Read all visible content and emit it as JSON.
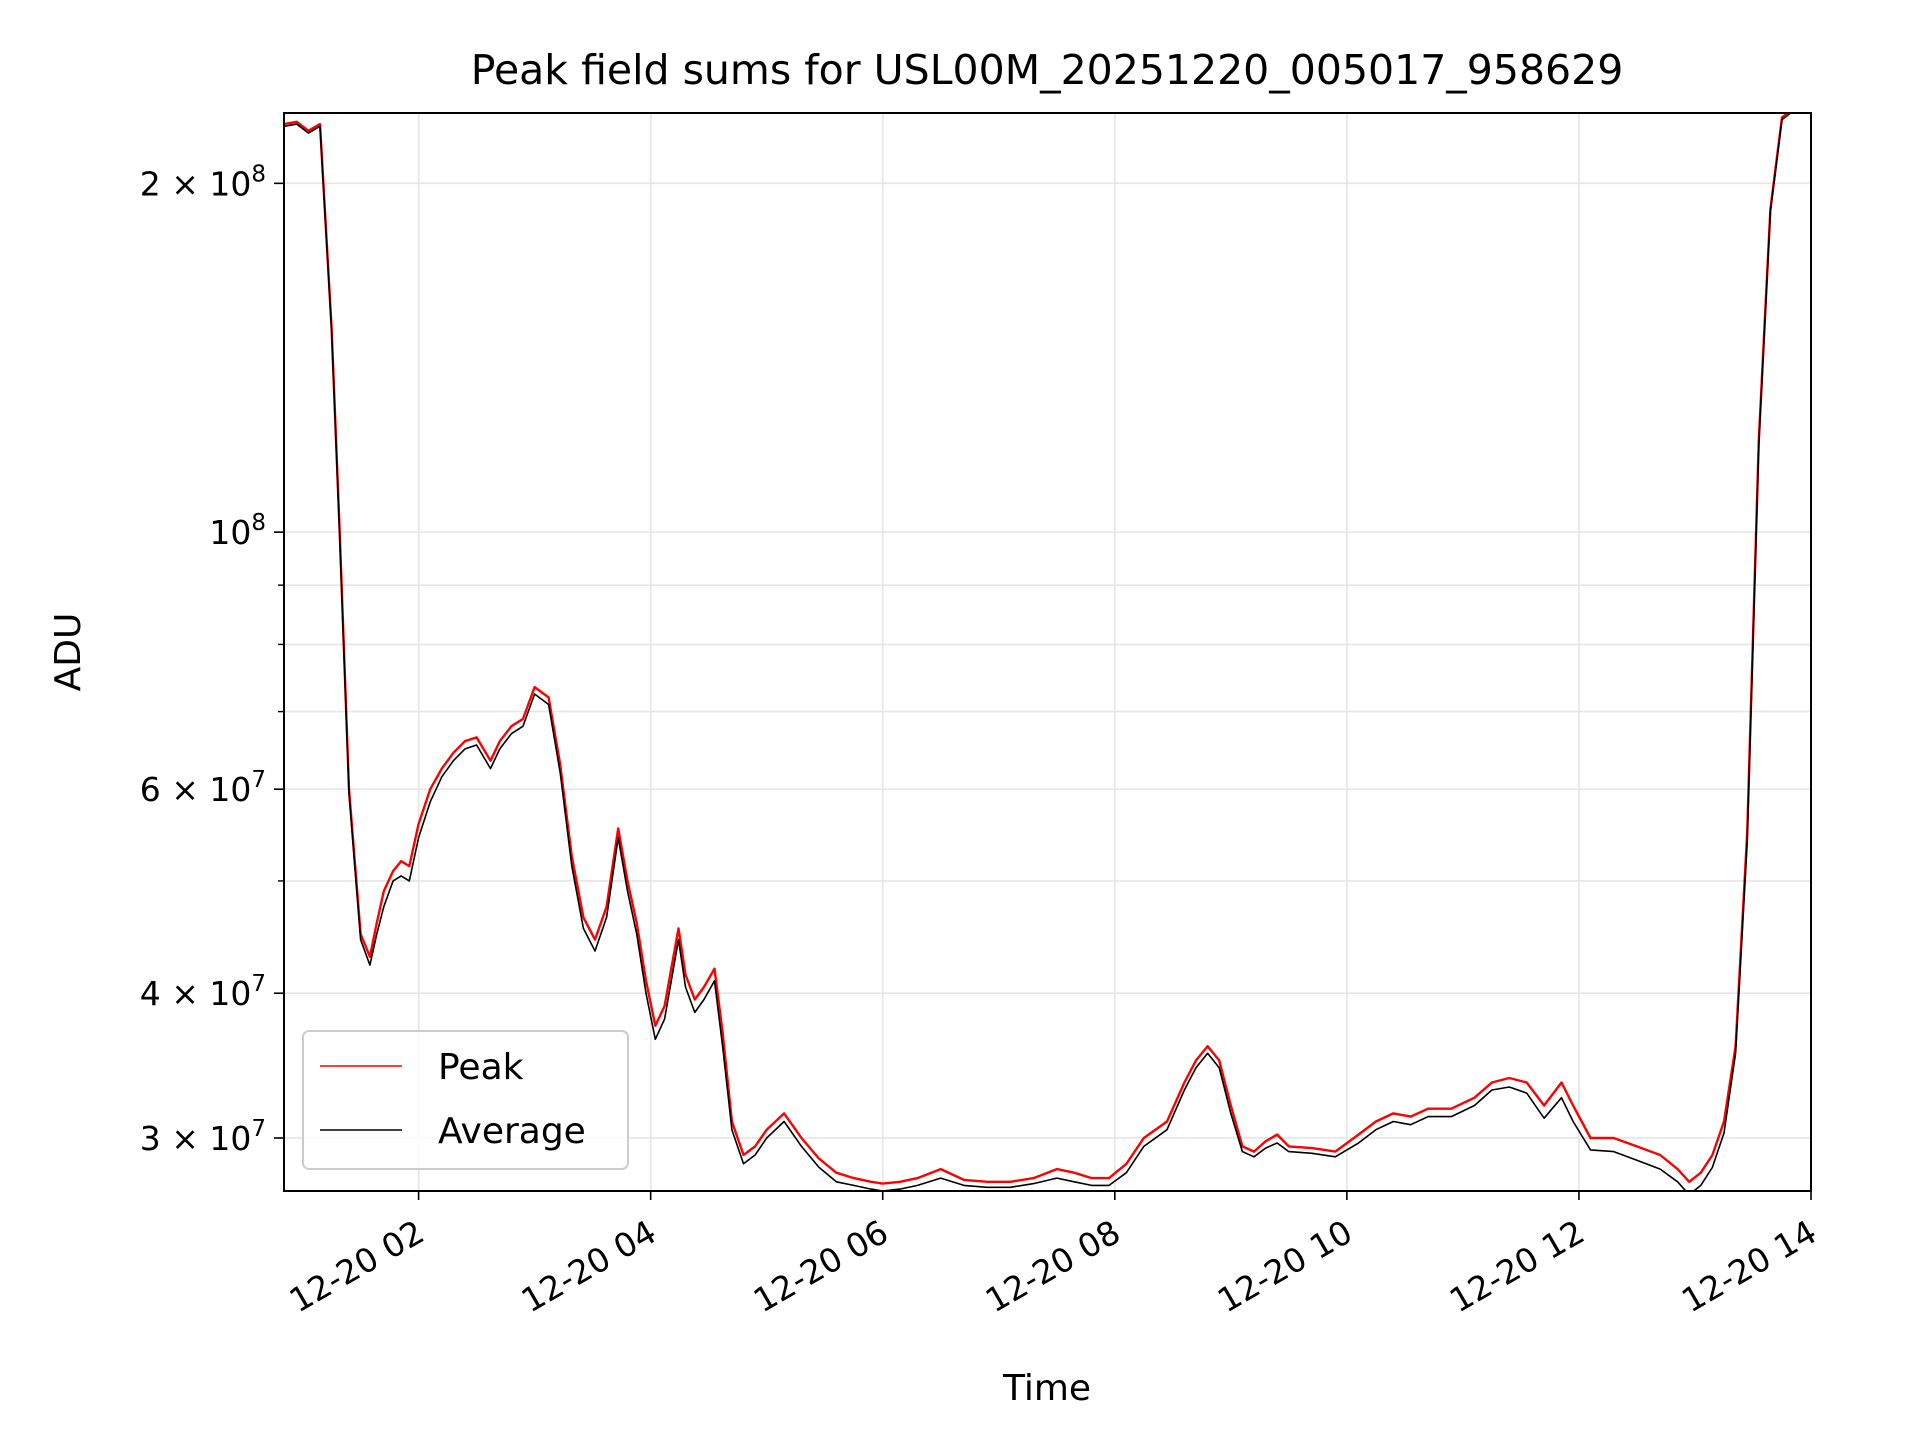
{
  "chart_data": {
    "type": "line",
    "title": "Peak field sums for USL00M_20251220_005017_958629",
    "xlabel": "Time",
    "ylabel": "ADU",
    "yscale": "log",
    "xlim_hours": [
      0.84,
      14.0
    ],
    "ylim": [
      27000000,
      230000000
    ],
    "grid": true,
    "legend_position": "lower-left",
    "x_ticks": [
      {
        "value": 2,
        "label": "12-20 02"
      },
      {
        "value": 4,
        "label": "12-20 04"
      },
      {
        "value": 6,
        "label": "12-20 06"
      },
      {
        "value": 8,
        "label": "12-20 08"
      },
      {
        "value": 10,
        "label": "12-20 10"
      },
      {
        "value": 12,
        "label": "12-20 12"
      },
      {
        "value": 14,
        "label": "12-20 14"
      }
    ],
    "y_major_ticks": [
      {
        "value": 30000000,
        "coef": "3",
        "exp": "7"
      },
      {
        "value": 40000000,
        "coef": "4",
        "exp": "7"
      },
      {
        "value": 60000000,
        "coef": "6",
        "exp": "7"
      },
      {
        "value": 100000000,
        "coef": "",
        "exp": "8"
      },
      {
        "value": 200000000,
        "coef": "2",
        "exp": "8"
      }
    ],
    "y_minor_ticks": [
      50000000,
      70000000,
      80000000,
      90000000
    ],
    "colors": {
      "peak": "#ff0000",
      "average": "#000000",
      "grid": "#e6e6e6"
    },
    "series": [
      {
        "name": "Peak",
        "color": "#ff0000",
        "x": [
          0.84,
          0.95,
          1.05,
          1.15,
          1.25,
          1.32,
          1.4,
          1.5,
          1.58,
          1.64,
          1.7,
          1.78,
          1.85,
          1.92,
          2.0,
          2.1,
          2.2,
          2.3,
          2.4,
          2.5,
          2.62,
          2.7,
          2.8,
          2.9,
          3.0,
          3.12,
          3.22,
          3.32,
          3.42,
          3.52,
          3.62,
          3.72,
          3.8,
          3.88,
          3.96,
          4.04,
          4.12,
          4.24,
          4.3,
          4.38,
          4.46,
          4.55,
          4.62,
          4.7,
          4.8,
          4.9,
          5.0,
          5.15,
          5.3,
          5.45,
          5.6,
          5.75,
          5.9,
          6.0,
          6.15,
          6.3,
          6.5,
          6.7,
          6.9,
          7.1,
          7.3,
          7.5,
          7.65,
          7.8,
          7.95,
          8.1,
          8.25,
          8.45,
          8.6,
          8.7,
          8.8,
          8.9,
          9.0,
          9.1,
          9.2,
          9.3,
          9.4,
          9.5,
          9.7,
          9.9,
          10.1,
          10.25,
          10.4,
          10.55,
          10.7,
          10.9,
          11.1,
          11.25,
          11.4,
          11.55,
          11.7,
          11.85,
          11.95,
          12.1,
          12.3,
          12.5,
          12.7,
          12.85,
          12.95,
          13.05,
          13.15,
          13.25,
          13.35,
          13.45,
          13.55,
          13.65,
          13.75,
          13.85,
          13.95,
          14.0
        ],
        "y": [
          225000000,
          226000000,
          222000000,
          225000000,
          150000000,
          100000000,
          60000000,
          45000000,
          43000000,
          46000000,
          49000000,
          51000000,
          52000000,
          51500000,
          56000000,
          60000000,
          62500000,
          64500000,
          66000000,
          66500000,
          63500000,
          66000000,
          68000000,
          69000000,
          73500000,
          72000000,
          63000000,
          52500000,
          46500000,
          44500000,
          47500000,
          55500000,
          50000000,
          46000000,
          41000000,
          37500000,
          39000000,
          45500000,
          41500000,
          39500000,
          40500000,
          42000000,
          37000000,
          31000000,
          29000000,
          29500000,
          30500000,
          31500000,
          30000000,
          28800000,
          28000000,
          27700000,
          27500000,
          27400000,
          27500000,
          27700000,
          28200000,
          27600000,
          27500000,
          27500000,
          27700000,
          28200000,
          28000000,
          27700000,
          27700000,
          28500000,
          30000000,
          31000000,
          33500000,
          35000000,
          36000000,
          35000000,
          32000000,
          29500000,
          29200000,
          29800000,
          30200000,
          29500000,
          29400000,
          29200000,
          30200000,
          31000000,
          31500000,
          31300000,
          31800000,
          31800000,
          32500000,
          33500000,
          33800000,
          33500000,
          32000000,
          33500000,
          32000000,
          30000000,
          30000000,
          29500000,
          29000000,
          28200000,
          27500000,
          28000000,
          29000000,
          31000000,
          36000000,
          55000000,
          120000000,
          190000000,
          228000000,
          232000000,
          235000000,
          235000000
        ]
      },
      {
        "name": "Average",
        "color": "#000000",
        "x": [
          0.84,
          0.95,
          1.05,
          1.15,
          1.25,
          1.32,
          1.4,
          1.5,
          1.58,
          1.64,
          1.7,
          1.78,
          1.85,
          1.92,
          2.0,
          2.1,
          2.2,
          2.3,
          2.4,
          2.5,
          2.62,
          2.7,
          2.8,
          2.9,
          3.0,
          3.12,
          3.22,
          3.32,
          3.42,
          3.52,
          3.62,
          3.72,
          3.8,
          3.88,
          3.96,
          4.04,
          4.12,
          4.24,
          4.3,
          4.38,
          4.46,
          4.55,
          4.62,
          4.7,
          4.8,
          4.9,
          5.0,
          5.15,
          5.3,
          5.45,
          5.6,
          5.75,
          5.9,
          6.0,
          6.15,
          6.3,
          6.5,
          6.7,
          6.9,
          7.1,
          7.3,
          7.5,
          7.65,
          7.8,
          7.95,
          8.1,
          8.25,
          8.45,
          8.6,
          8.7,
          8.8,
          8.9,
          9.0,
          9.1,
          9.2,
          9.3,
          9.4,
          9.5,
          9.7,
          9.9,
          10.1,
          10.25,
          10.4,
          10.55,
          10.7,
          10.9,
          11.1,
          11.25,
          11.4,
          11.55,
          11.7,
          11.85,
          11.95,
          12.1,
          12.3,
          12.5,
          12.7,
          12.85,
          12.95,
          13.05,
          13.15,
          13.25,
          13.35,
          13.45,
          13.55,
          13.65,
          13.75,
          13.85,
          13.95,
          14.0
        ],
        "y": [
          224000000,
          225000000,
          221000000,
          224000000,
          149000000,
          99000000,
          59500000,
          44500000,
          42300000,
          45000000,
          47500000,
          50000000,
          50500000,
          50000000,
          54500000,
          58500000,
          61500000,
          63500000,
          65000000,
          65500000,
          62500000,
          65000000,
          67000000,
          68000000,
          72500000,
          71000000,
          62000000,
          51500000,
          45500000,
          43500000,
          46500000,
          54500000,
          49000000,
          45000000,
          40000000,
          36500000,
          38000000,
          44500000,
          40500000,
          38500000,
          39500000,
          41000000,
          36000000,
          30500000,
          28500000,
          29000000,
          30000000,
          31000000,
          29500000,
          28300000,
          27500000,
          27300000,
          27100000,
          27000000,
          27100000,
          27300000,
          27700000,
          27300000,
          27200000,
          27200000,
          27400000,
          27700000,
          27500000,
          27300000,
          27300000,
          28000000,
          29500000,
          30500000,
          33000000,
          34500000,
          35500000,
          34500000,
          31500000,
          29200000,
          28900000,
          29400000,
          29700000,
          29200000,
          29100000,
          28900000,
          29700000,
          30500000,
          31000000,
          30800000,
          31300000,
          31300000,
          32000000,
          33000000,
          33200000,
          32800000,
          31200000,
          32500000,
          31000000,
          29300000,
          29200000,
          28700000,
          28200000,
          27500000,
          26800000,
          27300000,
          28300000,
          30300000,
          35500000,
          54000000,
          119000000,
          189000000,
          227000000,
          231000000,
          234000000,
          234000000
        ]
      }
    ]
  }
}
